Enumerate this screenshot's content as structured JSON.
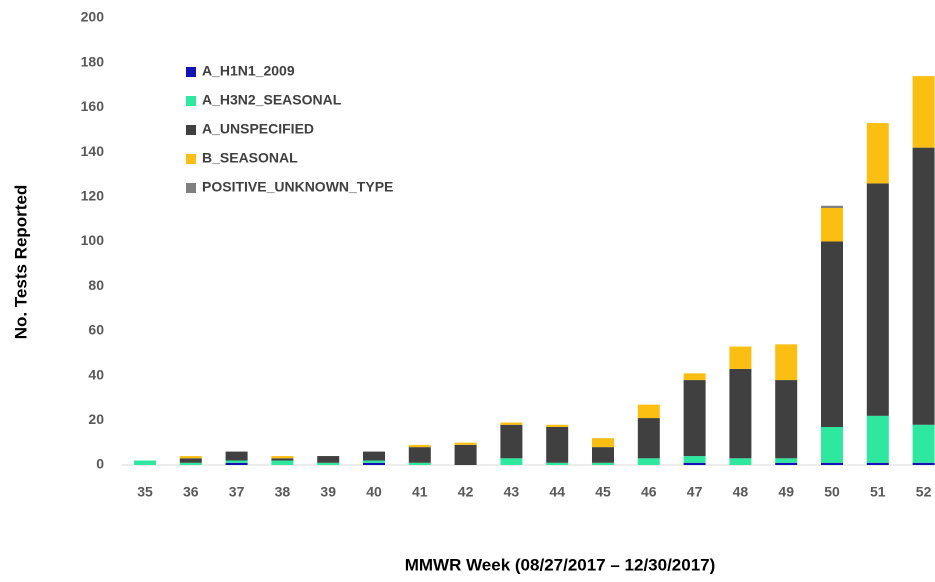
{
  "chart_data": {
    "type": "stacked_bar",
    "categories": [
      "35",
      "36",
      "37",
      "38",
      "39",
      "40",
      "41",
      "42",
      "43",
      "44",
      "45",
      "46",
      "47",
      "48",
      "49",
      "50",
      "51",
      "52"
    ],
    "series": [
      {
        "name": "A_H1N1_2009",
        "color": "#1414b4",
        "values": [
          0,
          0,
          1,
          0,
          0,
          1,
          0,
          0,
          0,
          0,
          0,
          0,
          1,
          0,
          1,
          1,
          1,
          1
        ]
      },
      {
        "name": "A_H3N2_SEASONAL",
        "color": "#2ee8a0",
        "values": [
          2,
          1,
          1,
          2,
          1,
          1,
          1,
          0,
          3,
          1,
          1,
          3,
          3,
          3,
          2,
          16,
          21,
          17
        ]
      },
      {
        "name": "A_UNSPECIFIED",
        "color": "#404040",
        "values": [
          0,
          2,
          4,
          1,
          3,
          4,
          7,
          9,
          15,
          16,
          7,
          18,
          34,
          40,
          35,
          83,
          104,
          124
        ]
      },
      {
        "name": "B_SEASONAL",
        "color": "#fbbf14",
        "values": [
          0,
          1,
          0,
          1,
          0,
          0,
          1,
          1,
          1,
          1,
          4,
          6,
          3,
          10,
          16,
          15,
          27,
          32
        ]
      },
      {
        "name": "POSITIVE_UNKNOWN_TYPE",
        "color": "#7f7f7f",
        "values": [
          0,
          0,
          0,
          0,
          0,
          0,
          0,
          0,
          0,
          0,
          0,
          0,
          0,
          0,
          0,
          1,
          0,
          0
        ]
      }
    ],
    "ylabel": "No. Tests Reported",
    "xlabel": "MMWR Week (08/27/2017 – 12/30/2017)",
    "ylim": [
      0,
      200
    ],
    "yticks": [
      0,
      20,
      40,
      60,
      80,
      100,
      120,
      140,
      160,
      180,
      200
    ],
    "grid": false
  }
}
